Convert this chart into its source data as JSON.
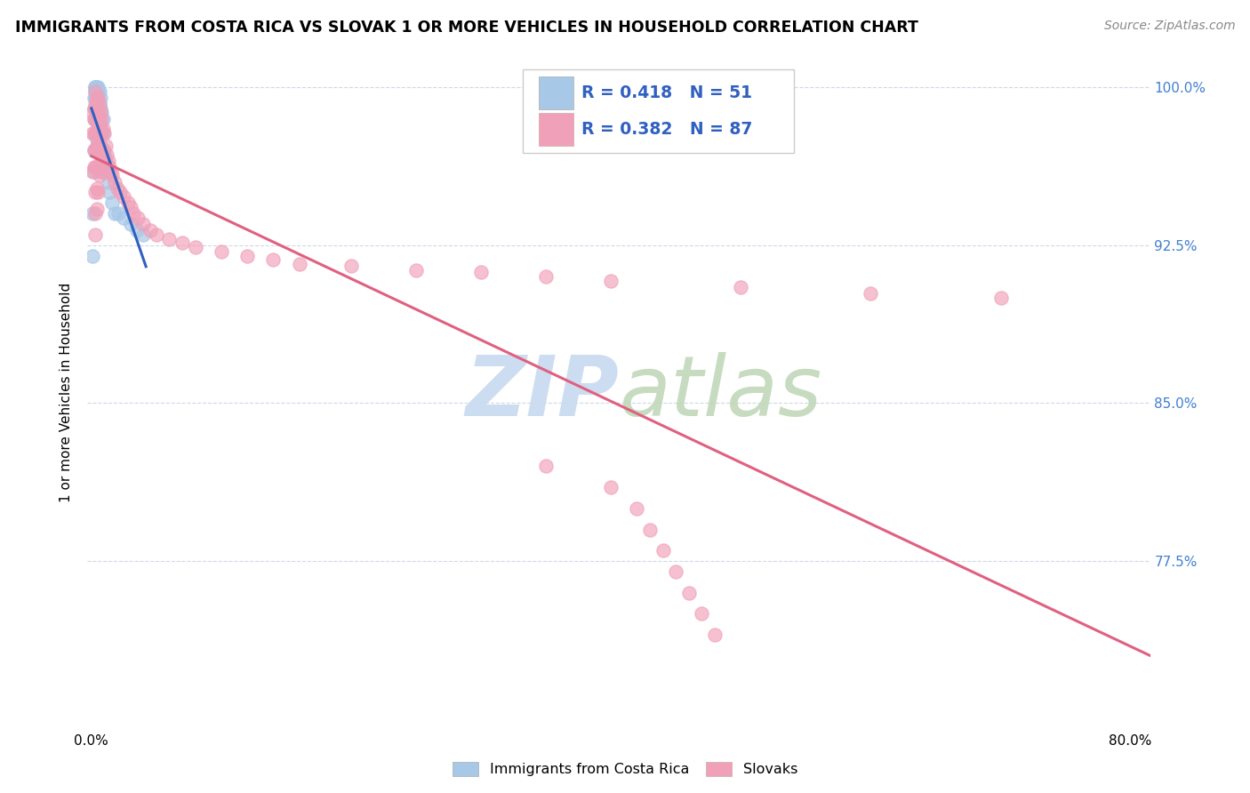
{
  "title": "IMMIGRANTS FROM COSTA RICA VS SLOVAK 1 OR MORE VEHICLES IN HOUSEHOLD CORRELATION CHART",
  "source": "Source: ZipAtlas.com",
  "ylabel": "1 or more Vehicles in Household",
  "ytick_labels": [
    "100.0%",
    "92.5%",
    "85.0%",
    "77.5%"
  ],
  "ytick_values": [
    1.0,
    0.925,
    0.85,
    0.775
  ],
  "y_min": 0.695,
  "y_max": 1.015,
  "x_min": -0.003,
  "x_max": 0.815,
  "legend_r1": "R = 0.418",
  "legend_n1": "N = 51",
  "legend_r2": "R = 0.382",
  "legend_n2": "N = 87",
  "color_blue": "#a8c8e8",
  "color_pink": "#f0a0b8",
  "color_blue_line": "#3060c0",
  "color_pink_line": "#e06080",
  "color_legend_text": "#3060c0",
  "color_right_axis": "#4080d0",
  "watermark_zip_color": "#c8daf0",
  "watermark_atlas_color": "#c0d8b8",
  "cr_x": [
    0.001,
    0.001,
    0.002,
    0.002,
    0.002,
    0.002,
    0.003,
    0.003,
    0.003,
    0.003,
    0.003,
    0.003,
    0.003,
    0.003,
    0.003,
    0.004,
    0.004,
    0.004,
    0.004,
    0.004,
    0.005,
    0.005,
    0.005,
    0.005,
    0.005,
    0.005,
    0.006,
    0.006,
    0.006,
    0.006,
    0.007,
    0.007,
    0.007,
    0.007,
    0.008,
    0.008,
    0.009,
    0.009,
    0.01,
    0.01,
    0.011,
    0.012,
    0.013,
    0.014,
    0.016,
    0.018,
    0.021,
    0.025,
    0.03,
    0.035,
    0.04
  ],
  "cr_y": [
    0.94,
    0.92,
    0.995,
    0.985,
    0.97,
    0.96,
    1.0,
    1.0,
    1.0,
    0.998,
    0.995,
    0.99,
    0.985,
    0.978,
    0.97,
    1.0,
    0.998,
    0.99,
    0.985,
    0.975,
    1.0,
    0.998,
    0.995,
    0.99,
    0.985,
    0.978,
    0.998,
    0.992,
    0.985,
    0.978,
    0.995,
    0.99,
    0.982,
    0.972,
    0.988,
    0.978,
    0.985,
    0.978,
    0.97,
    0.96,
    0.965,
    0.96,
    0.955,
    0.95,
    0.945,
    0.94,
    0.94,
    0.938,
    0.935,
    0.932,
    0.93
  ],
  "sk_x": [
    0.001,
    0.001,
    0.001,
    0.002,
    0.002,
    0.002,
    0.002,
    0.002,
    0.003,
    0.003,
    0.003,
    0.003,
    0.003,
    0.003,
    0.003,
    0.003,
    0.003,
    0.004,
    0.004,
    0.004,
    0.004,
    0.004,
    0.004,
    0.004,
    0.005,
    0.005,
    0.005,
    0.005,
    0.005,
    0.005,
    0.006,
    0.006,
    0.006,
    0.006,
    0.006,
    0.007,
    0.007,
    0.007,
    0.007,
    0.008,
    0.008,
    0.008,
    0.009,
    0.009,
    0.01,
    0.01,
    0.011,
    0.012,
    0.013,
    0.014,
    0.015,
    0.016,
    0.018,
    0.02,
    0.022,
    0.025,
    0.028,
    0.03,
    0.032,
    0.036,
    0.04,
    0.045,
    0.05,
    0.06,
    0.07,
    0.08,
    0.1,
    0.12,
    0.14,
    0.16,
    0.2,
    0.25,
    0.3,
    0.35,
    0.4,
    0.5,
    0.6,
    0.7,
    0.35,
    0.4,
    0.42,
    0.43,
    0.44,
    0.45,
    0.46,
    0.47,
    0.48
  ],
  "sk_y": [
    0.988,
    0.978,
    0.96,
    0.99,
    0.985,
    0.978,
    0.97,
    0.962,
    0.998,
    0.992,
    0.985,
    0.978,
    0.97,
    0.962,
    0.95,
    0.94,
    0.93,
    0.995,
    0.988,
    0.98,
    0.972,
    0.962,
    0.952,
    0.942,
    0.995,
    0.988,
    0.98,
    0.972,
    0.962,
    0.95,
    0.992,
    0.985,
    0.978,
    0.968,
    0.958,
    0.988,
    0.98,
    0.972,
    0.96,
    0.985,
    0.978,
    0.968,
    0.98,
    0.97,
    0.978,
    0.968,
    0.972,
    0.968,
    0.965,
    0.962,
    0.96,
    0.958,
    0.955,
    0.952,
    0.95,
    0.948,
    0.945,
    0.943,
    0.94,
    0.938,
    0.935,
    0.932,
    0.93,
    0.928,
    0.926,
    0.924,
    0.922,
    0.92,
    0.918,
    0.916,
    0.915,
    0.913,
    0.912,
    0.91,
    0.908,
    0.905,
    0.902,
    0.9,
    0.82,
    0.81,
    0.8,
    0.79,
    0.78,
    0.77,
    0.76,
    0.75,
    0.74
  ]
}
